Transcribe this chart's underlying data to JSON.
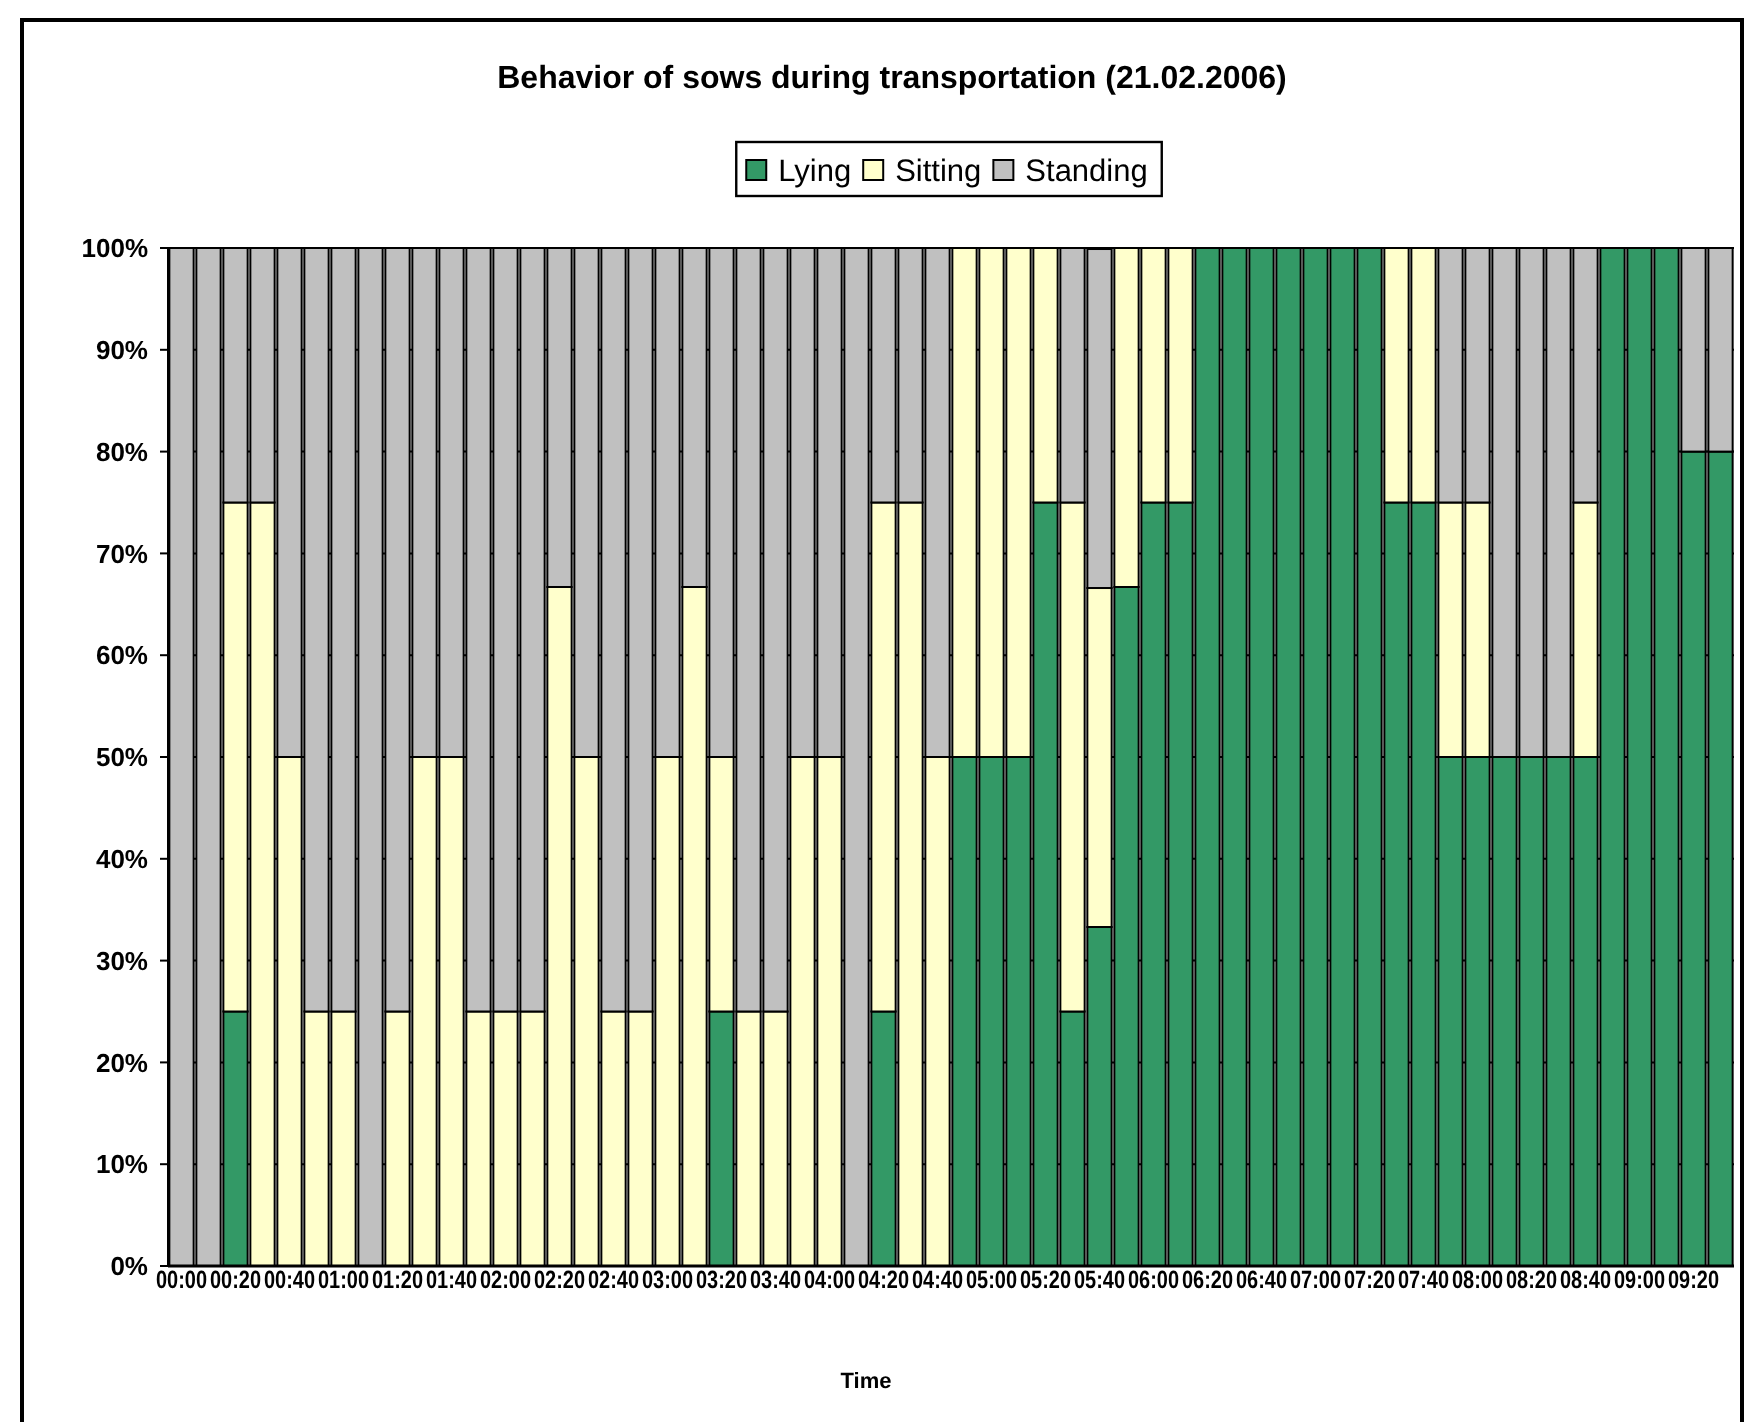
{
  "chart_data": {
    "type": "bar",
    "title": "Behavior of sows during transportation (21.02.2006)",
    "xlabel": "Time",
    "categories": [
      "00:00",
      null,
      "00:20",
      null,
      "00:40",
      null,
      "01:00",
      null,
      "01:20",
      null,
      "01:40",
      null,
      "02:00",
      null,
      "02:20",
      null,
      "02:40",
      null,
      "03:00",
      null,
      "03:20",
      null,
      "03:40",
      null,
      "04:00",
      null,
      "04:20",
      null,
      "04:40",
      null,
      "05:00",
      null,
      "05:20",
      null,
      "05:40",
      null,
      "06:00",
      null,
      "06:20",
      null,
      "06:40",
      null,
      "07:00",
      null,
      "07:20",
      null,
      "07:40",
      null,
      "08:00",
      null,
      "08:20",
      null,
      "08:40",
      null,
      "09:00",
      null,
      "09:20",
      null
    ],
    "series": [
      {
        "name": "Lying",
        "color": "#339966",
        "values": [
          0,
          0,
          25,
          0,
          0,
          0,
          0,
          0,
          0,
          0,
          0,
          0,
          0,
          0,
          0,
          0,
          0,
          0,
          0,
          0,
          25,
          0,
          0,
          0,
          0,
          0,
          25,
          0,
          0,
          50,
          50,
          50,
          75,
          25,
          33.3,
          66.7,
          75,
          75,
          100,
          100,
          100,
          100,
          100,
          100,
          100,
          75,
          75,
          50,
          50,
          50,
          50,
          50,
          50,
          100,
          100,
          100,
          80,
          80
        ]
      },
      {
        "name": "Sitting",
        "color": "#ffffcc",
        "values": [
          0,
          0,
          50,
          75,
          50,
          25,
          25,
          0,
          25,
          50,
          50,
          25,
          25,
          25,
          66.7,
          50,
          25,
          25,
          50,
          66.7,
          25,
          25,
          25,
          50,
          50,
          0,
          50,
          75,
          50,
          50,
          50,
          50,
          25,
          50,
          33.3,
          33.3,
          25,
          25,
          0,
          0,
          0,
          0,
          0,
          0,
          0,
          25,
          25,
          25,
          25,
          0,
          0,
          0,
          25,
          0,
          0,
          0,
          0,
          0
        ]
      },
      {
        "name": "Standing",
        "color": "#c0c0c0",
        "values": [
          100,
          100,
          25,
          25,
          50,
          75,
          75,
          100,
          75,
          50,
          50,
          75,
          75,
          75,
          33.3,
          50,
          75,
          75,
          50,
          33.3,
          50,
          75,
          75,
          50,
          50,
          100,
          25,
          25,
          50,
          0,
          0,
          0,
          0,
          25,
          33.3,
          0,
          0,
          0,
          0,
          0,
          0,
          0,
          0,
          0,
          0,
          0,
          0,
          25,
          25,
          50,
          50,
          50,
          25,
          0,
          0,
          0,
          20,
          20
        ]
      }
    ],
    "stacked": true,
    "ylim": [
      0,
      100
    ],
    "yticks": [
      {
        "value": 0,
        "label": "0%"
      },
      {
        "value": 10,
        "label": "10%"
      },
      {
        "value": 20,
        "label": "20%"
      },
      {
        "value": 30,
        "label": "30%"
      },
      {
        "value": 40,
        "label": "40%"
      },
      {
        "value": 50,
        "label": "50%"
      },
      {
        "value": 60,
        "label": "60%"
      },
      {
        "value": 70,
        "label": "70%"
      },
      {
        "value": 80,
        "label": "80%"
      },
      {
        "value": 90,
        "label": "90%"
      },
      {
        "value": 100,
        "label": "100%"
      }
    ],
    "grid": "y",
    "legend": "top"
  }
}
